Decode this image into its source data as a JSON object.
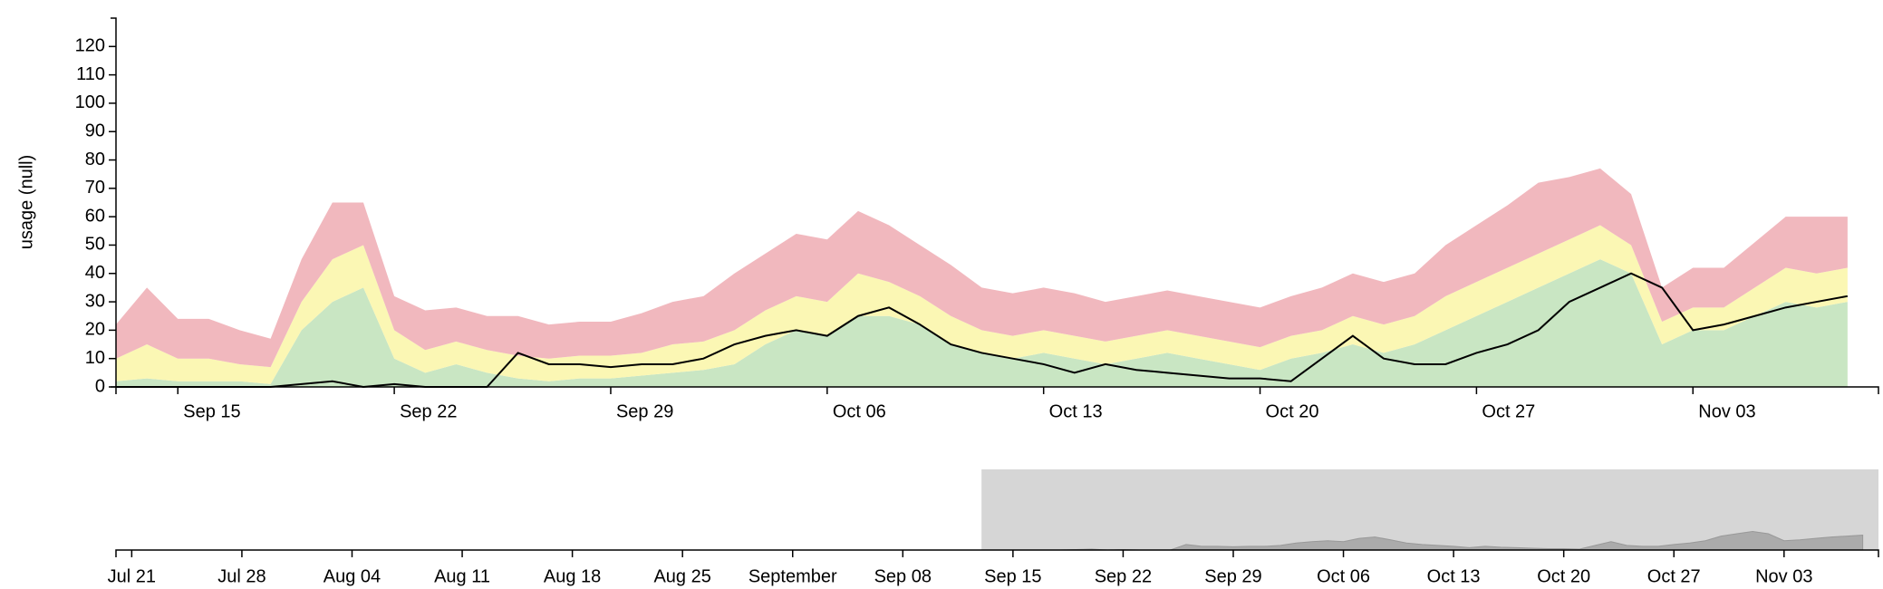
{
  "chart_data": [
    {
      "type": "area",
      "stacked": true,
      "y_label": "usage (null)",
      "x": [
        "Sep 13",
        "Sep 14",
        "Sep 15",
        "Sep 16",
        "Sep 17",
        "Sep 18",
        "Sep 19",
        "Sep 20",
        "Sep 21",
        "Sep 22",
        "Sep 23",
        "Sep 24",
        "Sep 25",
        "Sep 26",
        "Sep 27",
        "Sep 28",
        "Sep 29",
        "Sep 30",
        "Oct 01",
        "Oct 02",
        "Oct 03",
        "Oct 04",
        "Oct 05",
        "Oct 06",
        "Oct 07",
        "Oct 08",
        "Oct 09",
        "Oct 10",
        "Oct 11",
        "Oct 12",
        "Oct 13",
        "Oct 14",
        "Oct 15",
        "Oct 16",
        "Oct 17",
        "Oct 18",
        "Oct 19",
        "Oct 20",
        "Oct 21",
        "Oct 22",
        "Oct 23",
        "Oct 24",
        "Oct 25",
        "Oct 26",
        "Oct 27",
        "Oct 28",
        "Oct 29",
        "Oct 30",
        "Oct 31",
        "Nov 01",
        "Nov 02",
        "Nov 03",
        "Nov 04",
        "Nov 05",
        "Nov 06",
        "Nov 07",
        "Nov 08"
      ],
      "series": [
        {
          "color": "#c9e6c3",
          "values": [
            2,
            3,
            2,
            2,
            2,
            1,
            20,
            30,
            35,
            10,
            5,
            8,
            5,
            3,
            2,
            3,
            3,
            4,
            5,
            6,
            8,
            15,
            20,
            18,
            25,
            25,
            22,
            15,
            12,
            10,
            12,
            10,
            8,
            10,
            12,
            10,
            8,
            6,
            10,
            12,
            15,
            12,
            15,
            20,
            25,
            30,
            35,
            40,
            45,
            40,
            15,
            20,
            20,
            25,
            30,
            28,
            30
          ]
        },
        {
          "color": "#fbf7b4",
          "values": [
            8,
            12,
            8,
            8,
            6,
            6,
            10,
            15,
            15,
            10,
            8,
            8,
            8,
            8,
            8,
            8,
            8,
            8,
            10,
            10,
            12,
            12,
            12,
            12,
            15,
            12,
            10,
            10,
            8,
            8,
            8,
            8,
            8,
            8,
            8,
            8,
            8,
            8,
            8,
            8,
            10,
            10,
            10,
            12,
            12,
            12,
            12,
            12,
            12,
            10,
            8,
            8,
            8,
            10,
            12,
            12,
            12
          ]
        },
        {
          "color": "#f1b8be",
          "values": [
            12,
            20,
            14,
            14,
            12,
            10,
            15,
            20,
            15,
            12,
            14,
            12,
            12,
            14,
            12,
            12,
            12,
            14,
            15,
            16,
            20,
            20,
            22,
            22,
            22,
            20,
            18,
            18,
            15,
            15,
            15,
            15,
            14,
            14,
            14,
            14,
            14,
            14,
            14,
            15,
            15,
            15,
            15,
            18,
            20,
            22,
            25,
            22,
            20,
            18,
            12,
            14,
            14,
            16,
            18,
            20,
            18
          ]
        },
        {
          "type": "line",
          "color": "#000000",
          "values": [
            0,
            0,
            0,
            0,
            0,
            0,
            1,
            2,
            0,
            1,
            0,
            0,
            0,
            12,
            8,
            8,
            7,
            8,
            8,
            10,
            15,
            18,
            20,
            18,
            25,
            28,
            22,
            15,
            12,
            10,
            8,
            5,
            8,
            6,
            5,
            4,
            3,
            3,
            2,
            10,
            18,
            10,
            8,
            8,
            12,
            15,
            20,
            30,
            35,
            40,
            35,
            20,
            22,
            25,
            28,
            30,
            32
          ]
        }
      ],
      "xlim": [
        "Sep 13",
        "Nov 09"
      ],
      "xticks": [
        "Sep 15",
        "Sep 22",
        "Sep 29",
        "Oct 06",
        "Oct 13",
        "Oct 20",
        "Oct 27",
        "Nov 03"
      ],
      "ylim": [
        0,
        130
      ],
      "yticks": [
        0,
        10,
        20,
        30,
        40,
        50,
        60,
        70,
        80,
        90,
        100,
        110,
        120
      ]
    },
    {
      "type": "context",
      "xlim": [
        "Jul 20",
        "Nov 09"
      ],
      "xticks": [
        "Jul 21",
        "Jul 28",
        "Aug 04",
        "Aug 11",
        "Aug 18",
        "Aug 25",
        {
          "value": "Sep 01",
          "label": "September"
        },
        "Sep 08",
        "Sep 15",
        "Sep 22",
        "Sep 29",
        "Oct 06",
        "Oct 13",
        "Oct 20",
        "Oct 27",
        "Nov 03"
      ]
    }
  ]
}
